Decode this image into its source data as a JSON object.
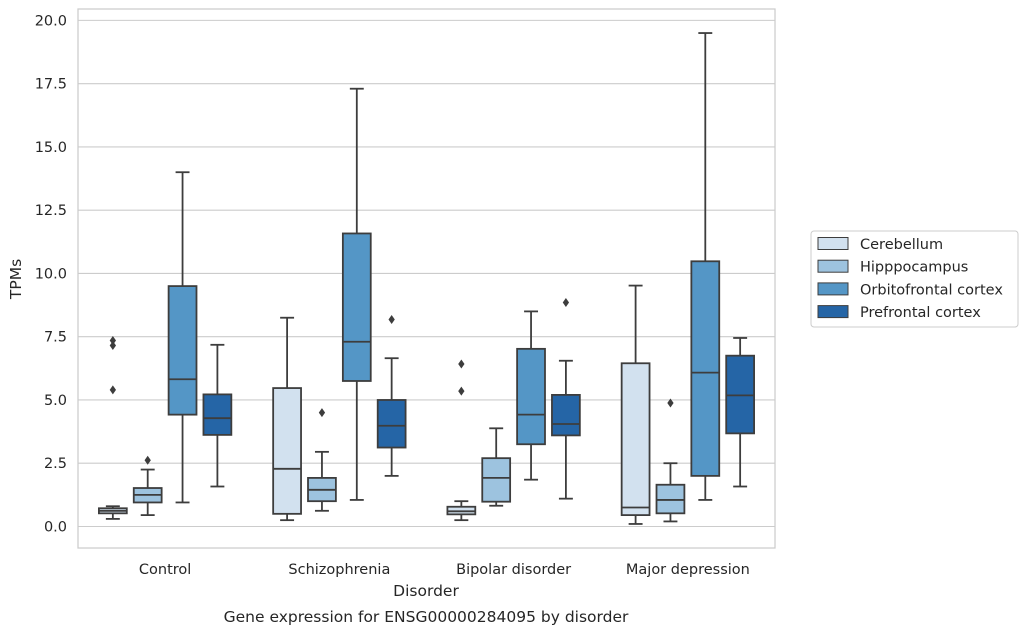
{
  "caption": "Gene expression for ENSG00000284095 by disorder",
  "chart_data": {
    "type": "box",
    "title": "",
    "xlabel": "Disorder",
    "ylabel": "TPMs",
    "ylim": [
      -0.85,
      20.45
    ],
    "yticks": [
      0.0,
      2.5,
      5.0,
      7.5,
      10.0,
      12.5,
      15.0,
      17.5,
      20.0
    ],
    "ytick_labels": [
      "0.0",
      "2.5",
      "5.0",
      "7.5",
      "10.0",
      "12.5",
      "15.0",
      "17.5",
      "20.0"
    ],
    "categories": [
      "Control",
      "Schizophrenia",
      "Bipolar disorder",
      "Major depression"
    ],
    "grid": true,
    "legend_position": "right",
    "series": [
      {
        "name": "Cerebellum",
        "color": "#d2e1ef",
        "boxes": [
          {
            "whislo": 0.3,
            "q1": 0.52,
            "med": 0.62,
            "q3": 0.72,
            "whishi": 0.8,
            "fliers": [
              5.4,
              7.15,
              7.35
            ]
          },
          {
            "whislo": 0.25,
            "q1": 0.5,
            "med": 2.28,
            "q3": 5.47,
            "whishi": 8.25,
            "fliers": []
          },
          {
            "whislo": 0.25,
            "q1": 0.48,
            "med": 0.6,
            "q3": 0.78,
            "whishi": 1.0,
            "fliers": [
              5.35,
              6.42
            ]
          },
          {
            "whislo": 0.1,
            "q1": 0.45,
            "med": 0.75,
            "q3": 6.45,
            "whishi": 9.52,
            "fliers": []
          }
        ]
      },
      {
        "name": "Hipppocampus",
        "color": "#9dc3df",
        "boxes": [
          {
            "whislo": 0.45,
            "q1": 0.95,
            "med": 1.25,
            "q3": 1.52,
            "whishi": 2.25,
            "fliers": [
              2.62
            ]
          },
          {
            "whislo": 0.62,
            "q1": 1.0,
            "med": 1.45,
            "q3": 1.92,
            "whishi": 2.95,
            "fliers": [
              4.5
            ]
          },
          {
            "whislo": 0.82,
            "q1": 0.98,
            "med": 1.92,
            "q3": 2.7,
            "whishi": 3.88,
            "fliers": []
          },
          {
            "whislo": 0.2,
            "q1": 0.52,
            "med": 1.05,
            "q3": 1.65,
            "whishi": 2.5,
            "fliers": [
              4.88
            ]
          }
        ]
      },
      {
        "name": "Orbitofrontal cortex",
        "color": "#5496c6",
        "boxes": [
          {
            "whislo": 0.95,
            "q1": 4.42,
            "med": 5.82,
            "q3": 9.5,
            "whishi": 14.0,
            "fliers": []
          },
          {
            "whislo": 1.05,
            "q1": 5.75,
            "med": 7.3,
            "q3": 11.58,
            "whishi": 17.3,
            "fliers": []
          },
          {
            "whislo": 1.85,
            "q1": 3.25,
            "med": 4.42,
            "q3": 7.02,
            "whishi": 8.5,
            "fliers": []
          },
          {
            "whislo": 1.05,
            "q1": 2.0,
            "med": 6.08,
            "q3": 10.48,
            "whishi": 19.5,
            "fliers": []
          }
        ]
      },
      {
        "name": "Prefrontal cortex",
        "color": "#2565a6",
        "boxes": [
          {
            "whislo": 1.58,
            "q1": 3.62,
            "med": 4.28,
            "q3": 5.22,
            "whishi": 7.18,
            "fliers": []
          },
          {
            "whislo": 2.0,
            "q1": 3.12,
            "med": 3.98,
            "q3": 5.0,
            "whishi": 6.65,
            "fliers": [
              8.18
            ]
          },
          {
            "whislo": 1.1,
            "q1": 3.6,
            "med": 4.05,
            "q3": 5.2,
            "whishi": 6.55,
            "fliers": [
              8.85
            ]
          },
          {
            "whislo": 1.58,
            "q1": 3.68,
            "med": 5.18,
            "q3": 6.75,
            "whishi": 7.45,
            "fliers": []
          }
        ]
      }
    ]
  }
}
